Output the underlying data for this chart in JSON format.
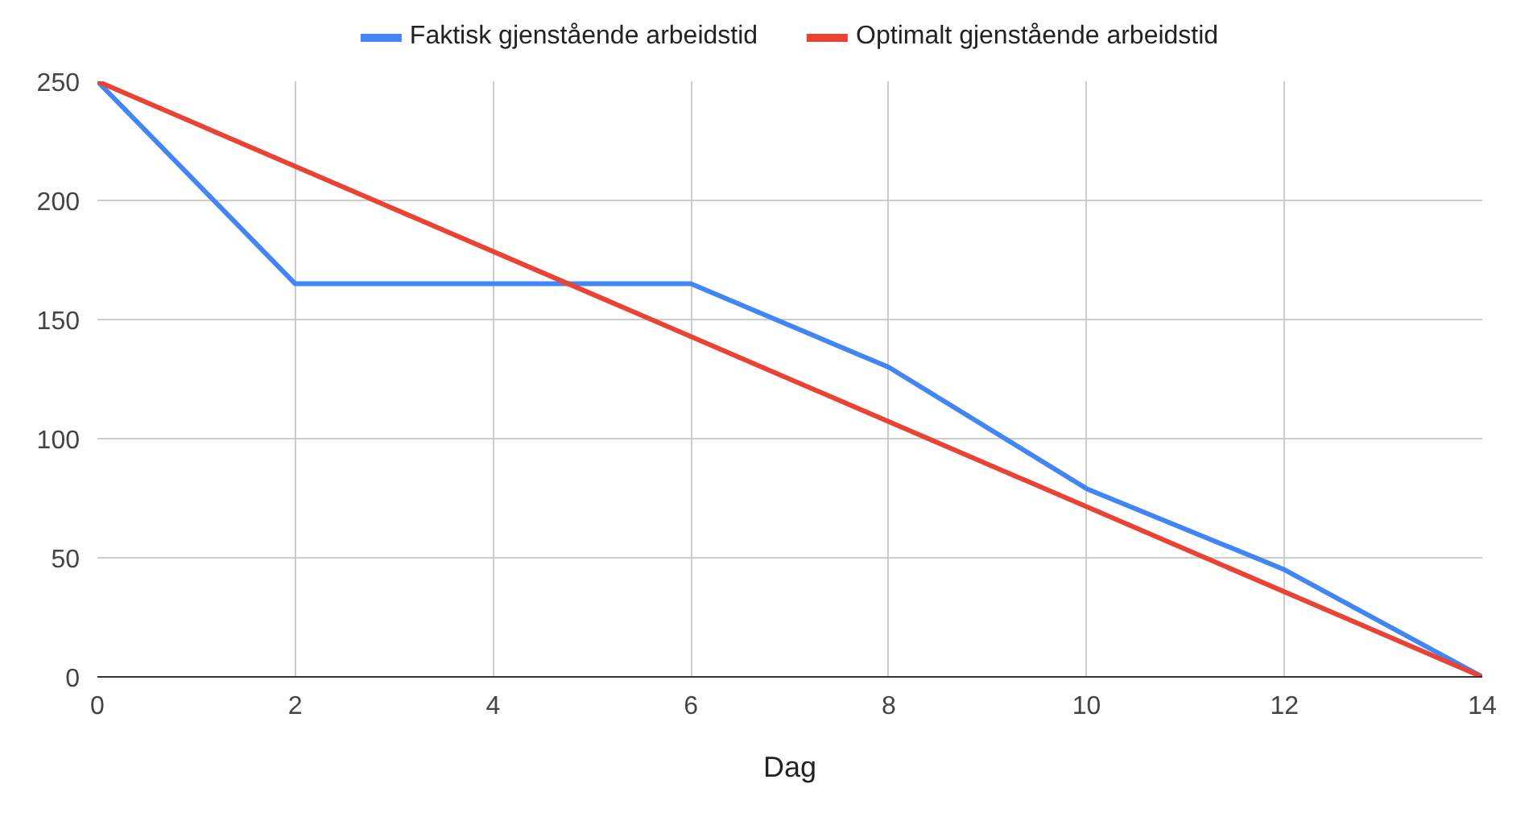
{
  "chart_data": {
    "type": "line",
    "xlabel": "Dag",
    "xlim": [
      0,
      14
    ],
    "xticks": [
      0,
      2,
      4,
      6,
      8,
      10,
      12,
      14
    ],
    "ylim": [
      0,
      250
    ],
    "yticks": [
      0,
      50,
      100,
      150,
      200,
      250
    ],
    "grid": true,
    "legend": "top",
    "marker": "none",
    "line_style": "solid",
    "series": [
      {
        "name": "Faktisk gjenstående arbeidstid",
        "color": "#4285f4",
        "x": [
          0,
          2,
          4,
          6,
          8,
          10,
          12,
          14
        ],
        "values": [
          250,
          165,
          165,
          165,
          130,
          79,
          45,
          0
        ]
      },
      {
        "name": "Optimalt gjenstående arbeidstid",
        "color": "#ea4335",
        "x": [
          0,
          14
        ],
        "values": [
          250,
          0
        ]
      }
    ]
  }
}
